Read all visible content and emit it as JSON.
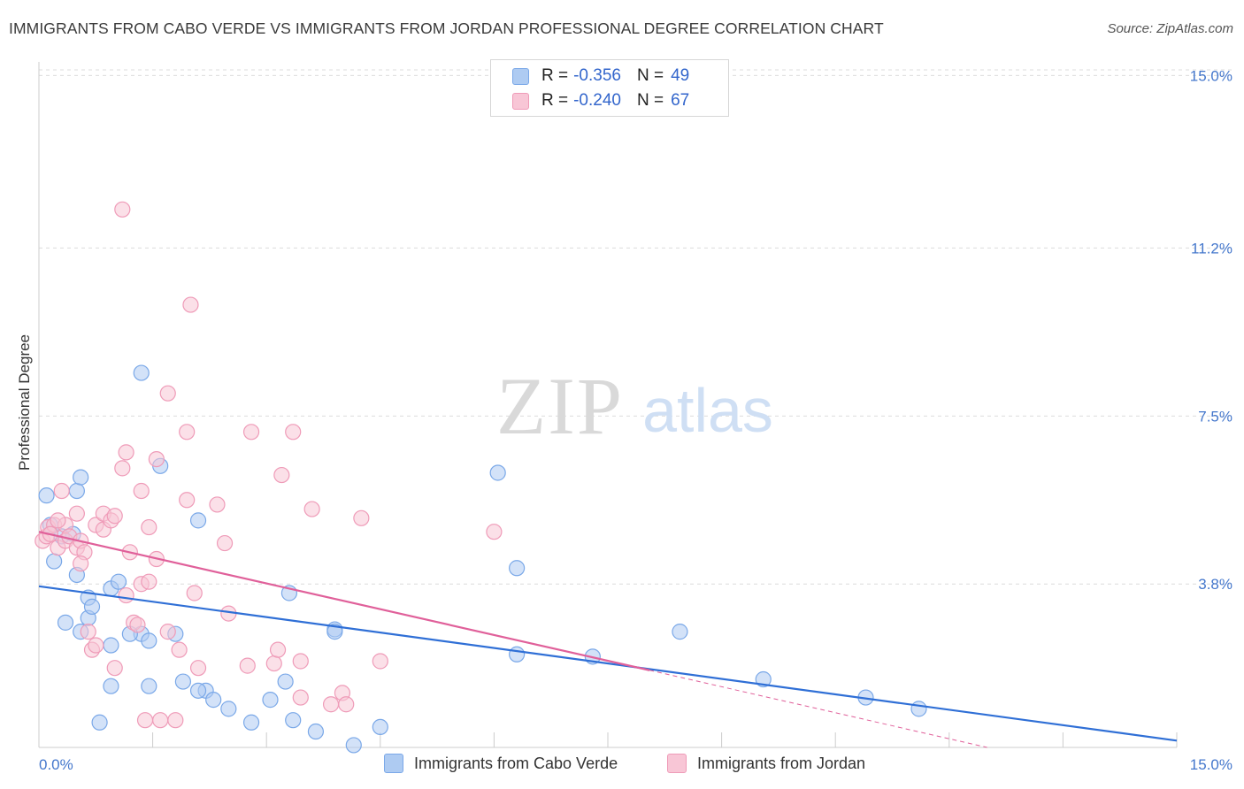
{
  "title": "IMMIGRANTS FROM CABO VERDE VS IMMIGRANTS FROM JORDAN PROFESSIONAL DEGREE CORRELATION CHART",
  "source": "Source: ZipAtlas.com",
  "watermark": {
    "zip": "ZIP",
    "atlas": "atlas"
  },
  "legend": {
    "rows": [
      {
        "r_label": "R =",
        "r_value": "-0.356",
        "n_label": "N =",
        "n_value": "49"
      },
      {
        "r_label": "R =",
        "r_value": "-0.240",
        "n_label": "N =",
        "n_value": "67"
      }
    ]
  },
  "chart_data": {
    "type": "scatter",
    "title": "IMMIGRANTS FROM CABO VERDE VS IMMIGRANTS FROM JORDAN PROFESSIONAL DEGREE CORRELATION CHART",
    "xlabel": "",
    "ylabel": "Professional Degree",
    "xlim": [
      0,
      15
    ],
    "ylim": [
      0.2,
      15.3
    ],
    "x_tick_labels": [
      {
        "value": 0,
        "label": "0.0%"
      },
      {
        "value": 15,
        "label": "15.0%"
      }
    ],
    "y_tick_labels": [
      {
        "value": 15.0,
        "label": "15.0%"
      },
      {
        "value": 11.2,
        "label": "11.2%"
      },
      {
        "value": 7.5,
        "label": "7.5%"
      },
      {
        "value": 3.8,
        "label": "3.8%"
      }
    ],
    "series": [
      {
        "name": "Immigrants from Cabo Verde",
        "color": "#7aa8e8",
        "fill": "#aecbf2",
        "trend_color": "#2f6fd6",
        "r": -0.356,
        "n": 49,
        "trend": {
          "x0": 0,
          "y0": 3.75,
          "x1": 15,
          "y1": 0.35
        },
        "points": [
          [
            0.1,
            5.75
          ],
          [
            0.15,
            5.1
          ],
          [
            0.2,
            4.3
          ],
          [
            0.3,
            4.85
          ],
          [
            0.45,
            4.9
          ],
          [
            0.5,
            5.85
          ],
          [
            0.55,
            6.15
          ],
          [
            0.5,
            4.0
          ],
          [
            0.35,
            2.95
          ],
          [
            0.65,
            3.05
          ],
          [
            0.65,
            3.5
          ],
          [
            0.7,
            3.3
          ],
          [
            0.95,
            3.7
          ],
          [
            1.05,
            3.85
          ],
          [
            0.95,
            2.45
          ],
          [
            0.95,
            1.55
          ],
          [
            1.35,
            8.45
          ],
          [
            1.35,
            2.7
          ],
          [
            1.45,
            2.55
          ],
          [
            1.45,
            1.55
          ],
          [
            1.6,
            6.4
          ],
          [
            1.9,
            1.65
          ],
          [
            2.1,
            5.2
          ],
          [
            2.2,
            1.45
          ],
          [
            2.3,
            1.25
          ],
          [
            2.5,
            1.05
          ],
          [
            2.8,
            0.75
          ],
          [
            3.05,
            1.25
          ],
          [
            3.3,
            3.6
          ],
          [
            3.35,
            0.8
          ],
          [
            3.25,
            1.65
          ],
          [
            3.9,
            2.8
          ],
          [
            3.9,
            2.75
          ],
          [
            4.15,
            0.25
          ],
          [
            4.5,
            0.65
          ],
          [
            6.05,
            6.25
          ],
          [
            6.3,
            4.15
          ],
          [
            6.3,
            2.25
          ],
          [
            7.3,
            2.2
          ],
          [
            8.45,
            2.75
          ],
          [
            9.55,
            1.7
          ],
          [
            10.9,
            1.3
          ],
          [
            11.6,
            1.05
          ],
          [
            0.55,
            2.75
          ],
          [
            0.8,
            0.75
          ],
          [
            1.2,
            2.7
          ],
          [
            2.1,
            1.45
          ],
          [
            3.65,
            0.55
          ],
          [
            1.8,
            2.7
          ]
        ]
      },
      {
        "name": "Immigrants from Jordan",
        "color": "#ef9bb8",
        "fill": "#f8c6d6",
        "trend_color": "#e0609a",
        "r": -0.24,
        "n": 67,
        "trend": {
          "x0": 0,
          "y0": 4.95,
          "x1": 8.05,
          "y1": 1.9
        },
        "trend_ext": {
          "x0": 8.05,
          "y0": 1.9,
          "x1": 12.5,
          "y1": 0.2
        },
        "points": [
          [
            0.05,
            4.75
          ],
          [
            0.1,
            4.85
          ],
          [
            0.12,
            5.05
          ],
          [
            0.2,
            5.1
          ],
          [
            0.25,
            4.6
          ],
          [
            0.3,
            5.85
          ],
          [
            0.35,
            5.1
          ],
          [
            0.35,
            4.75
          ],
          [
            0.4,
            4.85
          ],
          [
            0.5,
            4.6
          ],
          [
            0.55,
            4.75
          ],
          [
            0.5,
            5.35
          ],
          [
            0.6,
            4.5
          ],
          [
            0.55,
            4.25
          ],
          [
            0.65,
            2.75
          ],
          [
            0.7,
            2.35
          ],
          [
            0.75,
            2.45
          ],
          [
            0.75,
            5.1
          ],
          [
            0.85,
            5.0
          ],
          [
            0.85,
            5.35
          ],
          [
            0.95,
            5.2
          ],
          [
            1.0,
            5.3
          ],
          [
            1.0,
            1.95
          ],
          [
            1.1,
            6.35
          ],
          [
            1.15,
            6.7
          ],
          [
            1.15,
            3.55
          ],
          [
            1.2,
            4.5
          ],
          [
            1.25,
            2.95
          ],
          [
            1.3,
            2.9
          ],
          [
            1.35,
            5.85
          ],
          [
            1.35,
            3.8
          ],
          [
            1.4,
            0.8
          ],
          [
            1.45,
            5.05
          ],
          [
            1.45,
            3.85
          ],
          [
            1.55,
            6.55
          ],
          [
            1.55,
            4.35
          ],
          [
            1.6,
            0.8
          ],
          [
            1.7,
            8.0
          ],
          [
            1.7,
            2.75
          ],
          [
            1.8,
            0.8
          ],
          [
            1.85,
            2.35
          ],
          [
            1.95,
            5.65
          ],
          [
            1.95,
            7.15
          ],
          [
            2.05,
            3.6
          ],
          [
            2.1,
            1.95
          ],
          [
            2.0,
            9.95
          ],
          [
            1.1,
            12.05
          ],
          [
            2.35,
            5.55
          ],
          [
            2.45,
            4.7
          ],
          [
            2.5,
            3.15
          ],
          [
            2.75,
            2.0
          ],
          [
            2.8,
            7.15
          ],
          [
            3.1,
            2.05
          ],
          [
            3.15,
            2.35
          ],
          [
            3.2,
            6.2
          ],
          [
            3.35,
            7.15
          ],
          [
            3.45,
            2.1
          ],
          [
            3.45,
            1.3
          ],
          [
            3.6,
            5.45
          ],
          [
            3.85,
            1.15
          ],
          [
            4.0,
            1.4
          ],
          [
            4.05,
            1.15
          ],
          [
            4.25,
            5.25
          ],
          [
            4.5,
            2.1
          ],
          [
            6.0,
            4.95
          ],
          [
            0.25,
            5.2
          ],
          [
            0.15,
            4.9
          ]
        ]
      }
    ]
  },
  "bottom_legend": [
    {
      "label": "Immigrants from Cabo Verde"
    },
    {
      "label": "Immigrants from Jordan"
    }
  ]
}
